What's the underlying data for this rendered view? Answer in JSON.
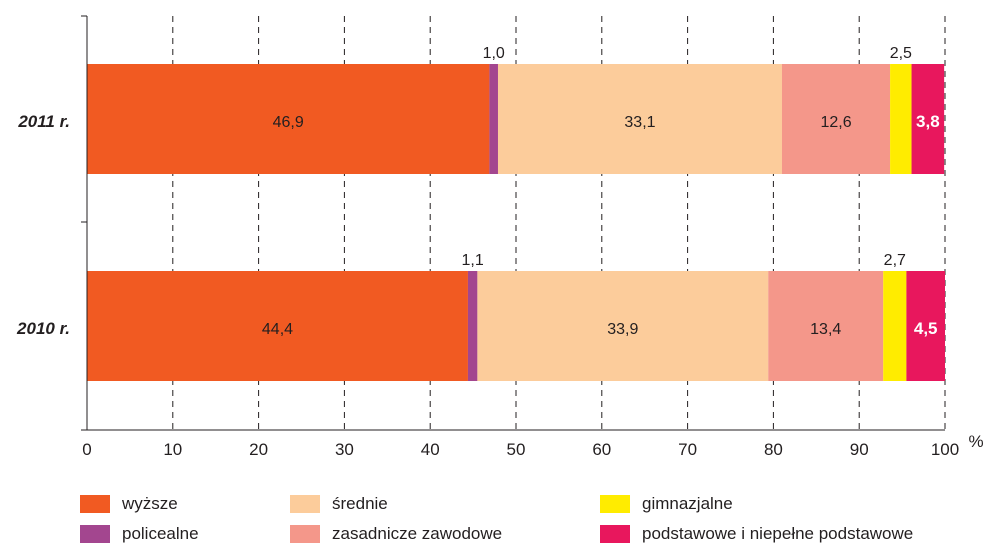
{
  "chart_data": {
    "type": "bar",
    "orientation": "horizontal",
    "stacked": true,
    "categories": [
      "2011 r.",
      "2010 r."
    ],
    "series": [
      {
        "name": "wyższe",
        "color": "#f15a22",
        "values": [
          46.9,
          44.4
        ],
        "labels": [
          "46,9",
          "44,4"
        ]
      },
      {
        "name": "policealne",
        "color": "#a3468f",
        "values": [
          1.0,
          1.1
        ],
        "labels": [
          "1,0",
          "1,1"
        ]
      },
      {
        "name": "średnie",
        "color": "#fccc9b",
        "values": [
          33.1,
          33.9
        ],
        "labels": [
          "33,1",
          "33,9"
        ]
      },
      {
        "name": "zasadnicze zawodowe",
        "color": "#f4978a",
        "values": [
          12.6,
          13.4
        ],
        "labels": [
          "12,6",
          "13,4"
        ]
      },
      {
        "name": "gimnazjalne",
        "color": "#ffec00",
        "values": [
          2.5,
          2.7
        ],
        "labels": [
          "2,5",
          "2,7"
        ]
      },
      {
        "name": "podstawowe i niepełne podstawowe",
        "color": "#e8175d",
        "values": [
          3.8,
          4.5
        ],
        "labels": [
          "3,8",
          "4,5"
        ]
      }
    ],
    "xlim": [
      0,
      100
    ],
    "xticks": [
      0,
      10,
      20,
      30,
      40,
      50,
      60,
      70,
      80,
      90,
      100
    ],
    "unit": "%",
    "grid": "vertical dashed",
    "legend_position": "bottom"
  }
}
